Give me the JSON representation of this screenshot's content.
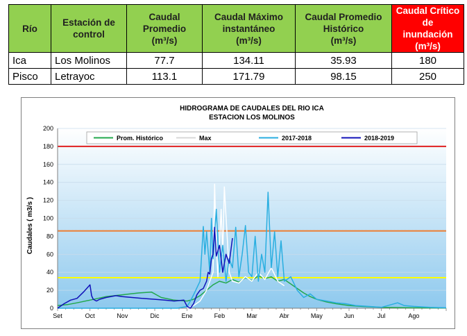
{
  "table": {
    "headers": [
      {
        "l1": "Río",
        "l2": ""
      },
      {
        "l1": "Estación de",
        "l2": "control"
      },
      {
        "l1": "Caudal",
        "l2": "Promedio",
        "l3": "(m³/s)"
      },
      {
        "l1": "Caudal Máximo",
        "l2": "instantáneo",
        "l3": "(m³/s)"
      },
      {
        "l1": "Caudal Promedio",
        "l2": "Histórico",
        "l3": "(m³/s)"
      },
      {
        "l1": "Caudal Crítico de",
        "l2": "inundación",
        "l3": "(m³/s)"
      }
    ],
    "rows": [
      {
        "rio": "Ica",
        "estacion": "Los Molinos",
        "promedio": "77.7",
        "maximo": "134.11",
        "historico": "35.93",
        "critico": "180"
      },
      {
        "rio": "Pisco",
        "estacion": "Letrayoc",
        "promedio": "113.1",
        "maximo": "171.79",
        "historico": "98.15",
        "critico": "250"
      }
    ],
    "header_color": "#92d050",
    "critical_color": "#ff0000"
  },
  "chart_data": {
    "type": "line",
    "title": "HIDROGRAMA DE CAUDALES DEL RIO ICA",
    "subtitle": "ESTACION  LOS MOLINOS",
    "ylabel": "Caudales  ( m3/s )",
    "xlabel": "",
    "ylim": [
      0,
      200
    ],
    "yticks": [
      0,
      20,
      40,
      60,
      80,
      100,
      120,
      140,
      160,
      180,
      200
    ],
    "months": [
      "Set",
      "Oct",
      "Nov",
      "Dic",
      "Ene",
      "Feb",
      "Mar",
      "Abr",
      "May",
      "Jun",
      "Jul",
      "Ago"
    ],
    "legend_position": "top",
    "grid": true,
    "reference_lines": [
      {
        "value": 180,
        "color": "#e02020"
      },
      {
        "value": 86,
        "color": "#ed7d31"
      },
      {
        "value": 34,
        "color": "#ffff00"
      }
    ],
    "series": [
      {
        "name": "Prom. Histórico",
        "color": "#22a84c",
        "x": [
          0,
          0.3,
          0.6,
          1.0,
          1.5,
          2.0,
          2.5,
          2.9,
          3.2,
          3.6,
          4.0,
          4.2,
          4.4,
          4.6,
          4.8,
          5.0,
          5.2,
          5.4,
          5.6,
          5.8,
          6.0,
          6.2,
          6.4,
          6.6,
          6.8,
          7.0,
          7.2,
          7.4,
          7.6,
          7.8,
          8.0,
          8.3,
          8.6,
          9.0,
          9.4,
          10.0,
          11.0,
          12.0
        ],
        "y": [
          3,
          4,
          6,
          9,
          13,
          15,
          17,
          18,
          12,
          9,
          8,
          10,
          14,
          20,
          26,
          30,
          28,
          32,
          29,
          34,
          31,
          36,
          33,
          35,
          30,
          32,
          27,
          22,
          17,
          13,
          10,
          7,
          5,
          3,
          2,
          1,
          0.5,
          0.3
        ]
      },
      {
        "name": "Max",
        "color": "#ffffff",
        "x": [
          4.0,
          4.2,
          4.4,
          4.6,
          4.8,
          4.85,
          4.9,
          4.95,
          5.05,
          5.1,
          5.15,
          5.3,
          5.4,
          5.6,
          5.8,
          6.0,
          6.2,
          6.4,
          6.6,
          6.8,
          7.0
        ],
        "y": [
          0,
          3,
          8,
          20,
          40,
          138,
          70,
          35,
          110,
          60,
          135,
          40,
          30,
          28,
          35,
          30,
          40,
          32,
          45,
          30,
          25
        ]
      },
      {
        "name": "2017-2018",
        "color": "#29aee0",
        "x": [
          0,
          1,
          2,
          3,
          3.5,
          3.7,
          4.0,
          4.1,
          4.2,
          4.4,
          4.5,
          4.55,
          4.6,
          4.7,
          4.75,
          4.8,
          4.9,
          5.0,
          5.1,
          5.2,
          5.3,
          5.4,
          5.5,
          5.6,
          5.7,
          5.8,
          5.9,
          6.0,
          6.1,
          6.2,
          6.3,
          6.4,
          6.5,
          6.6,
          6.7,
          6.8,
          6.9,
          7.0,
          7.2,
          7.4,
          7.6,
          7.8,
          8.0,
          8.3,
          8.6,
          8.9,
          9.2,
          9.6,
          10.0,
          10.3,
          10.5,
          10.7,
          11.0,
          11.5,
          12.0
        ],
        "y": [
          0,
          0,
          0,
          0,
          0,
          0,
          2,
          8,
          15,
          30,
          91,
          60,
          85,
          40,
          100,
          55,
          110,
          40,
          70,
          30,
          55,
          45,
          90,
          35,
          60,
          92,
          40,
          35,
          80,
          30,
          60,
          40,
          129,
          45,
          85,
          35,
          75,
          30,
          35,
          20,
          12,
          16,
          10,
          8,
          6,
          5,
          3,
          2,
          1,
          4,
          6,
          3,
          2,
          1,
          0.5
        ]
      },
      {
        "name": "2018-2019",
        "color": "#1010b8",
        "x": [
          0,
          0.2,
          0.4,
          0.6,
          0.8,
          0.9,
          1.0,
          1.05,
          1.1,
          1.2,
          1.3,
          1.5,
          1.8,
          2.0,
          2.3,
          2.6,
          3.0,
          3.3,
          3.6,
          3.9,
          4.0,
          4.1,
          4.2,
          4.3,
          4.4,
          4.5,
          4.6,
          4.65,
          4.7,
          4.75,
          4.8,
          4.85,
          4.9,
          5.0,
          5.1,
          5.2,
          5.3,
          5.4
        ],
        "y": [
          0,
          5,
          9,
          11,
          18,
          22,
          26,
          14,
          10,
          8,
          10,
          12,
          14,
          13,
          12,
          11,
          10,
          9,
          8,
          9,
          2,
          0,
          5,
          15,
          20,
          22,
          30,
          40,
          38,
          55,
          60,
          90,
          58,
          70,
          40,
          60,
          50,
          78
        ]
      }
    ]
  }
}
